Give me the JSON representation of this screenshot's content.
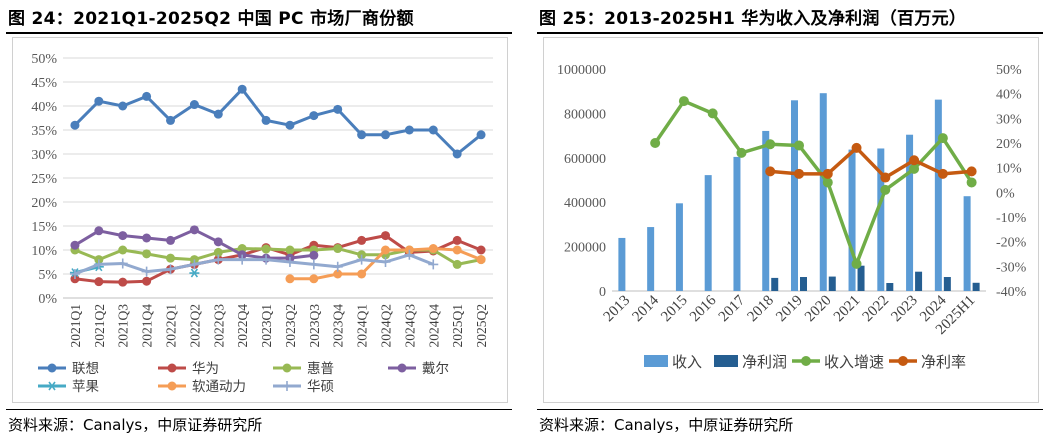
{
  "left": {
    "title": "图 24：2021Q1-2025Q2  中国 PC 市场厂商份额",
    "source": "资料来源：Canalys，中原证券研究所"
  },
  "right": {
    "title": "图 25：2013-2025H1  华为收入及净利润（百万元）",
    "source": "资料来源：Canalys，中原证券研究所"
  },
  "chart_data": [
    {
      "type": "line",
      "title": "2021Q1-2025Q2 中国 PC 市场厂商份额",
      "categories": [
        "2021Q1",
        "2021Q2",
        "2021Q3",
        "2021Q4",
        "2022Q1",
        "2022Q2",
        "2022Q3",
        "2022Q4",
        "2023Q1",
        "2023Q2",
        "2023Q3",
        "2023Q4",
        "2024Q1",
        "2024Q2",
        "2024Q3",
        "2024Q4",
        "2025Q1",
        "2025Q2"
      ],
      "ylim": [
        0,
        50
      ],
      "yticks": [
        "0%",
        "5%",
        "10%",
        "15%",
        "20%",
        "25%",
        "30%",
        "35%",
        "40%",
        "45%",
        "50%"
      ],
      "series": [
        {
          "name": "联想",
          "color": "#4a7ebb",
          "marker": "circle",
          "values": [
            36,
            41,
            40,
            42,
            37,
            40.3,
            38.3,
            43.5,
            37,
            36,
            38,
            39.3,
            34,
            34,
            35,
            35,
            30,
            34
          ]
        },
        {
          "name": "华为",
          "color": "#be4b48",
          "marker": "circle",
          "values": [
            4,
            3.4,
            3.3,
            3.5,
            6,
            7,
            8,
            9,
            10.5,
            9,
            11,
            10.5,
            12,
            13,
            9.5,
            9.8,
            12,
            10
          ]
        },
        {
          "name": "惠普",
          "color": "#98b954",
          "marker": "circle",
          "values": [
            10,
            8,
            10,
            9.2,
            8.3,
            8,
            9.5,
            10.3,
            10.2,
            10,
            10,
            10.3,
            9,
            9,
            10,
            10,
            7,
            8
          ]
        },
        {
          "name": "戴尔",
          "color": "#7d5fa0",
          "marker": "circle",
          "values": [
            11,
            14,
            13,
            12.5,
            12,
            14.2,
            11.7,
            9,
            8.3,
            8.3,
            8.9,
            null,
            null,
            null,
            null,
            null,
            null,
            null
          ]
        },
        {
          "name": "苹果",
          "color": "#46aac5",
          "marker": "star",
          "values": [
            5.3,
            6.5,
            null,
            null,
            null,
            5.2,
            null,
            null,
            null,
            null,
            null,
            null,
            null,
            null,
            null,
            null,
            null,
            null
          ]
        },
        {
          "name": "软通动力",
          "color": "#f59d56",
          "marker": "circle",
          "values": [
            null,
            null,
            null,
            null,
            null,
            null,
            null,
            null,
            null,
            4,
            4,
            5,
            5,
            10,
            10,
            10.3,
            10,
            8
          ]
        },
        {
          "name": "华硕",
          "color": "#92a9cf",
          "marker": "plus",
          "values": [
            5,
            7,
            7.2,
            5.5,
            6,
            7,
            8,
            8,
            8,
            7.5,
            7,
            6.5,
            8,
            7.5,
            9,
            7,
            null,
            null
          ]
        }
      ]
    },
    {
      "type": "bar+line",
      "title": "2013-2025H1 华为收入及净利润（百万元）",
      "categories": [
        "2013",
        "2014",
        "2015",
        "2016",
        "2017",
        "2018",
        "2019",
        "2020",
        "2021",
        "2022",
        "2023",
        "2024",
        "2025H1"
      ],
      "left_ylim": [
        0,
        1000000
      ],
      "left_yticks": [
        "0",
        "200000",
        "400000",
        "600000",
        "800000",
        "1000000"
      ],
      "right_ylim": [
        -40,
        50
      ],
      "right_yticks": [
        "-40%",
        "-30%",
        "-20%",
        "-10%",
        "0%",
        "10%",
        "20%",
        "30%",
        "40%",
        "50%"
      ],
      "bar_series": [
        {
          "name": "收入",
          "color": "#5b9bd5",
          "values": [
            239000,
            288000,
            395000,
            522000,
            604000,
            721000,
            859000,
            891000,
            637000,
            642000,
            704000,
            862000,
            427000
          ]
        },
        {
          "name": "净利润",
          "color": "#255e91",
          "values": [
            null,
            null,
            null,
            null,
            null,
            59000,
            63000,
            65000,
            114000,
            36000,
            87000,
            63000,
            37000
          ]
        }
      ],
      "line_series": [
        {
          "name": "收入增速",
          "color": "#70ad47",
          "axis": "right",
          "values": [
            null,
            20,
            37,
            32,
            16,
            19.5,
            19,
            4,
            -29,
            1,
            9.5,
            22,
            4
          ]
        },
        {
          "name": "净利率",
          "color": "#c55a11",
          "axis": "right",
          "values": [
            null,
            null,
            null,
            null,
            null,
            8.5,
            7.5,
            7.5,
            18,
            6,
            13,
            7.5,
            8.5
          ]
        }
      ]
    }
  ]
}
